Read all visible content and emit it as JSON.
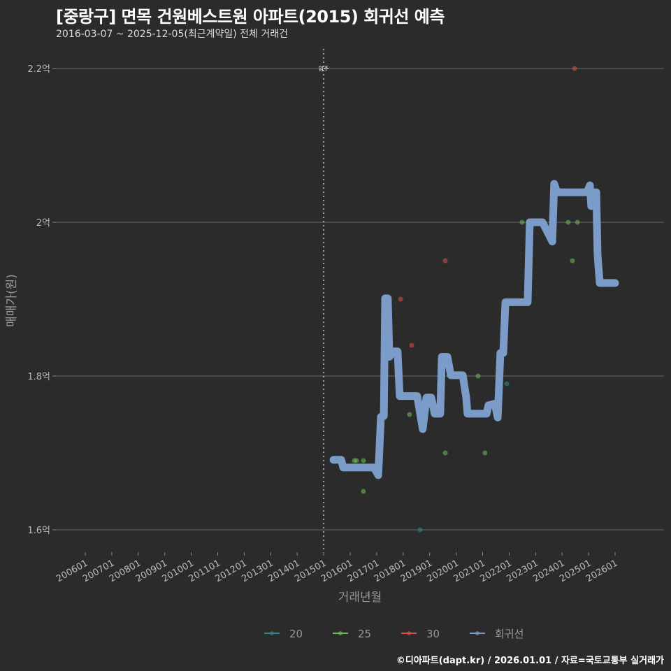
{
  "title": "[중랑구] 면목 건원베스트원 아파트(2015) 회귀선 예측",
  "subtitle": "2016-03-07 ~ 2025-12-05(최근계약일) 전체 거래건",
  "footer": "©디아파트(dapt.kr) / 2026.01.01 / 자료=국토교통부 실거래가",
  "chart_data": {
    "type": "scatter",
    "xlabel": "거래년월",
    "ylabel": "매매가(원)",
    "xlim": [
      2006,
      2026
    ],
    "ylim": [
      1.575,
      2.225
    ],
    "x_ticks": [
      "200601",
      "200701",
      "200801",
      "200901",
      "201001",
      "201101",
      "201201",
      "201301",
      "201401",
      "201501",
      "201601",
      "201701",
      "201801",
      "201901",
      "202001",
      "202101",
      "202201",
      "202301",
      "202401",
      "202501",
      "202601"
    ],
    "y_ticks": [
      {
        "value": 1.6,
        "label": "1.6억"
      },
      {
        "value": 1.8,
        "label": "1.8억"
      },
      {
        "value": 2.0,
        "label": "2억"
      },
      {
        "value": 2.2,
        "label": "2.2억"
      }
    ],
    "grid": true,
    "annotation": {
      "x": 2015.0,
      "label": "입주"
    },
    "legend_position": "bottom",
    "series": [
      {
        "name": "20",
        "color": "#2a8c8c",
        "type": "scatter",
        "points": [
          [
            2018.64,
            1.6
          ],
          [
            2021.91,
            1.79
          ]
        ]
      },
      {
        "name": "25",
        "color": "#6fbf5a",
        "type": "scatter",
        "points": [
          [
            2016.16,
            1.69
          ],
          [
            2016.24,
            1.69
          ],
          [
            2016.5,
            1.69
          ],
          [
            2016.5,
            1.65
          ],
          [
            2018.24,
            1.75
          ],
          [
            2019.59,
            1.7
          ],
          [
            2020.83,
            1.8
          ],
          [
            2021.09,
            1.7
          ],
          [
            2022.49,
            2.0
          ],
          [
            2024.23,
            2.0
          ],
          [
            2024.39,
            1.95
          ],
          [
            2024.58,
            2.0
          ]
        ]
      },
      {
        "name": "30",
        "color": "#d9534f",
        "type": "scatter",
        "points": [
          [
            2017.9,
            1.9
          ],
          [
            2018.32,
            1.84
          ],
          [
            2019.59,
            1.95
          ],
          [
            2024.47,
            2.2
          ]
        ]
      },
      {
        "name": "회귀선",
        "color": "#7b9cc8",
        "type": "line",
        "points": [
          [
            2015.37,
            1.691
          ],
          [
            2015.66,
            1.691
          ],
          [
            2015.74,
            1.681
          ],
          [
            2016.9,
            1.681
          ],
          [
            2017.06,
            1.671
          ],
          [
            2017.16,
            1.747
          ],
          [
            2017.27,
            1.748
          ],
          [
            2017.32,
            1.901
          ],
          [
            2017.42,
            1.901
          ],
          [
            2017.48,
            1.825
          ],
          [
            2017.64,
            1.832
          ],
          [
            2017.79,
            1.832
          ],
          [
            2017.87,
            1.774
          ],
          [
            2018.53,
            1.774
          ],
          [
            2018.74,
            1.731
          ],
          [
            2018.88,
            1.772
          ],
          [
            2019.06,
            1.772
          ],
          [
            2019.19,
            1.751
          ],
          [
            2019.4,
            1.751
          ],
          [
            2019.46,
            1.825
          ],
          [
            2019.67,
            1.825
          ],
          [
            2019.8,
            1.801
          ],
          [
            2020.25,
            1.801
          ],
          [
            2020.38,
            1.772
          ],
          [
            2020.43,
            1.751
          ],
          [
            2021.15,
            1.751
          ],
          [
            2021.22,
            1.762
          ],
          [
            2021.46,
            1.764
          ],
          [
            2021.57,
            1.746
          ],
          [
            2021.67,
            1.83
          ],
          [
            2021.78,
            1.83
          ],
          [
            2021.86,
            1.896
          ],
          [
            2022.7,
            1.896
          ],
          [
            2022.78,
            2.0
          ],
          [
            2023.26,
            2.0
          ],
          [
            2023.63,
            1.975
          ],
          [
            2023.7,
            2.05
          ],
          [
            2023.81,
            2.039
          ],
          [
            2024.94,
            2.039
          ],
          [
            2025.05,
            2.048
          ],
          [
            2025.1,
            2.021
          ],
          [
            2025.18,
            2.039
          ],
          [
            2025.29,
            2.039
          ],
          [
            2025.34,
            1.957
          ],
          [
            2025.42,
            1.921
          ],
          [
            2026.0,
            1.921
          ]
        ]
      }
    ]
  }
}
